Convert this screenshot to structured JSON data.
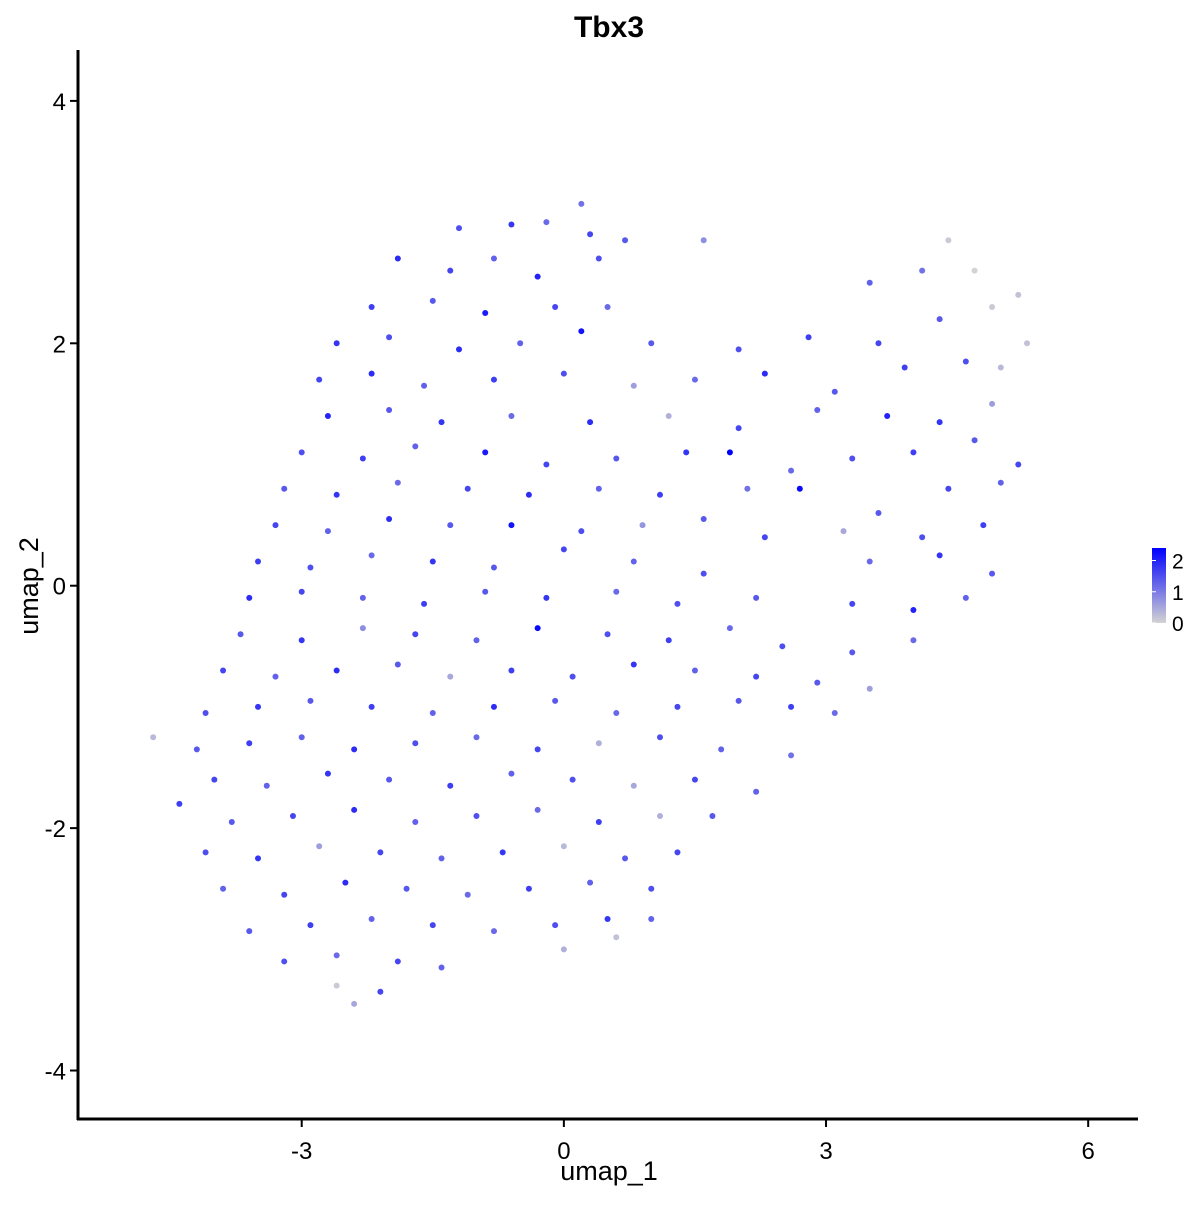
{
  "chart_data": {
    "type": "scatter",
    "title": "Tbx3",
    "x_label": "umap_1",
    "y_label": "umap_2",
    "xlim": [
      -5.56,
      6.57
    ],
    "ylim": [
      -4.4,
      4.42
    ],
    "xticks": [
      -3,
      0,
      3,
      6
    ],
    "yticks": [
      -4,
      -2,
      0,
      2,
      4
    ],
    "colorbar": {
      "lim": [
        0,
        2.4
      ],
      "ticks": [
        0,
        1,
        2
      ],
      "low": "#d3d3d3",
      "high": "#0000ff"
    },
    "x": [
      -1.2,
      -0.6,
      -0.2,
      0.3,
      0.7,
      0.2,
      -1.9,
      -1.3,
      -0.8,
      -0.3,
      0.4,
      1.6,
      4.4,
      -2.2,
      -1.5,
      -0.9,
      -0.1,
      0.5,
      3.5,
      4.1,
      4.7,
      5.2,
      -2.6,
      -2.0,
      -1.2,
      -0.5,
      0.2,
      1.0,
      2.0,
      2.8,
      3.6,
      4.3,
      4.9,
      5.3,
      -2.8,
      -2.2,
      -1.6,
      -0.8,
      0.0,
      0.8,
      1.5,
      2.3,
      3.1,
      3.9,
      4.6,
      5.0,
      -2.7,
      -2.0,
      -1.4,
      -0.6,
      0.3,
      1.2,
      2.0,
      2.9,
      3.7,
      4.3,
      4.9,
      -3.0,
      -2.3,
      -1.7,
      -0.9,
      -0.2,
      0.6,
      1.4,
      1.9,
      2.6,
      3.3,
      4.0,
      4.7,
      5.2,
      -3.2,
      -2.6,
      -1.9,
      -1.1,
      -0.4,
      0.4,
      1.1,
      2.1,
      2.7,
      3.6,
      4.4,
      5.0,
      -3.3,
      -2.7,
      -2.0,
      -1.3,
      -0.6,
      0.2,
      0.9,
      1.6,
      2.3,
      3.2,
      4.1,
      4.8,
      -3.5,
      -2.9,
      -2.2,
      -1.5,
      -0.8,
      0.0,
      0.8,
      1.6,
      3.5,
      4.3,
      4.9,
      -3.6,
      -3.0,
      -2.3,
      -1.6,
      -0.9,
      -0.2,
      0.6,
      1.3,
      2.2,
      3.3,
      4.0,
      4.6,
      -3.7,
      -3.0,
      -2.3,
      -1.7,
      -1.0,
      -0.3,
      0.5,
      1.2,
      1.9,
      2.5,
      3.3,
      4.0,
      -3.9,
      -3.3,
      -2.6,
      -1.9,
      -1.3,
      -0.6,
      0.1,
      0.8,
      1.5,
      2.2,
      2.9,
      3.5,
      -4.1,
      -3.5,
      -2.9,
      -2.2,
      -1.5,
      -0.8,
      -0.1,
      0.6,
      1.3,
      2.0,
      2.6,
      3.1,
      -4.7,
      -4.2,
      -3.6,
      -3.0,
      -2.4,
      -1.7,
      -1.0,
      -0.3,
      0.4,
      1.1,
      1.8,
      2.6,
      -4.0,
      -3.4,
      -2.7,
      -2.0,
      -1.3,
      -0.6,
      0.1,
      0.8,
      1.5,
      2.2,
      -4.4,
      -3.8,
      -3.1,
      -2.4,
      -1.7,
      -1.0,
      -0.3,
      0.4,
      1.1,
      1.7,
      -4.1,
      -3.5,
      -2.8,
      -2.1,
      -1.4,
      -0.7,
      0.0,
      0.7,
      1.3,
      -3.9,
      -3.2,
      -2.5,
      -1.8,
      -1.1,
      -0.4,
      0.3,
      1.0,
      -3.6,
      -2.9,
      -2.2,
      -1.5,
      -0.8,
      -0.1,
      0.5,
      1.0,
      -3.2,
      -2.6,
      -1.9,
      -1.4,
      0.0,
      0.6,
      -2.4,
      -2.1,
      -2.6
    ],
    "y": [
      2.95,
      2.98,
      3.0,
      2.9,
      2.85,
      3.15,
      2.7,
      2.6,
      2.7,
      2.55,
      2.7,
      2.85,
      2.85,
      2.3,
      2.35,
      2.25,
      2.3,
      2.3,
      2.5,
      2.6,
      2.6,
      2.4,
      2.0,
      2.05,
      1.95,
      2.0,
      2.1,
      2.0,
      1.95,
      2.05,
      2.0,
      2.2,
      2.3,
      2.0,
      1.7,
      1.75,
      1.65,
      1.7,
      1.75,
      1.65,
      1.7,
      1.75,
      1.6,
      1.8,
      1.85,
      1.8,
      1.4,
      1.45,
      1.35,
      1.4,
      1.35,
      1.4,
      1.3,
      1.45,
      1.4,
      1.35,
      1.5,
      1.1,
      1.05,
      1.15,
      1.1,
      1.0,
      1.05,
      1.1,
      1.1,
      0.95,
      1.05,
      1.1,
      1.2,
      1.0,
      0.8,
      0.75,
      0.85,
      0.8,
      0.75,
      0.8,
      0.75,
      0.8,
      0.8,
      0.6,
      0.8,
      0.85,
      0.5,
      0.45,
      0.55,
      0.5,
      0.5,
      0.45,
      0.5,
      0.55,
      0.4,
      0.45,
      0.4,
      0.5,
      0.2,
      0.15,
      0.25,
      0.2,
      0.15,
      0.3,
      0.2,
      0.1,
      0.2,
      0.25,
      0.1,
      -0.1,
      -0.05,
      -0.1,
      -0.15,
      -0.05,
      -0.1,
      -0.05,
      -0.15,
      -0.1,
      -0.15,
      -0.2,
      -0.1,
      -0.4,
      -0.45,
      -0.35,
      -0.4,
      -0.45,
      -0.35,
      -0.4,
      -0.45,
      -0.35,
      -0.5,
      -0.55,
      -0.45,
      -0.7,
      -0.75,
      -0.7,
      -0.65,
      -0.75,
      -0.7,
      -0.75,
      -0.65,
      -0.7,
      -0.75,
      -0.8,
      -0.85,
      -1.05,
      -1.0,
      -0.95,
      -1.0,
      -1.05,
      -1.0,
      -0.95,
      -1.05,
      -1.0,
      -0.95,
      -1.0,
      -1.05,
      -1.25,
      -1.35,
      -1.3,
      -1.25,
      -1.35,
      -1.3,
      -1.25,
      -1.35,
      -1.3,
      -1.25,
      -1.35,
      -1.4,
      -1.6,
      -1.65,
      -1.55,
      -1.6,
      -1.65,
      -1.55,
      -1.6,
      -1.65,
      -1.6,
      -1.7,
      -1.8,
      -1.95,
      -1.9,
      -1.85,
      -1.95,
      -1.9,
      -1.85,
      -1.95,
      -1.9,
      -1.9,
      -2.2,
      -2.25,
      -2.15,
      -2.2,
      -2.25,
      -2.2,
      -2.15,
      -2.25,
      -2.2,
      -2.5,
      -2.55,
      -2.45,
      -2.5,
      -2.55,
      -2.5,
      -2.45,
      -2.5,
      -2.85,
      -2.8,
      -2.75,
      -2.8,
      -2.85,
      -2.8,
      -2.75,
      -2.75,
      -3.1,
      -3.05,
      -3.1,
      -3.15,
      -3.0,
      -2.9,
      -3.45,
      -3.35,
      -3.3
    ],
    "values": [
      1.5,
      1.8,
      1.2,
      1.6,
      1.4,
      1.1,
      1.9,
      1.6,
      1.3,
      2.0,
      1.5,
      0.8,
      0.1,
      1.7,
      1.4,
      2.1,
      1.6,
      1.2,
      1.3,
      1.1,
      0,
      0.2,
      1.8,
      1.5,
      1.9,
      1.3,
      2.2,
      1.4,
      1.5,
      1.7,
      1.6,
      1.4,
      0.1,
      0.2,
      1.6,
      1.9,
      1.3,
      1.7,
      1.5,
      0.6,
      1.2,
      1.9,
      1.4,
      1.7,
      1.5,
      0.3,
      2.0,
      1.4,
      1.8,
      1.2,
      1.9,
      0.4,
      1.6,
      1.3,
      2.0,
      1.8,
      0.6,
      1.5,
      1.7,
      1.3,
      2.1,
      1.6,
      1.4,
      1.8,
      2.4,
      1.2,
      1.5,
      1.7,
      1.4,
      1.6,
      1.4,
      1.8,
      1.2,
      1.6,
      1.9,
      1.3,
      1.7,
      1.1,
      2.3,
      1.4,
      1.6,
      1.3,
      1.6,
      1.3,
      1.9,
      1.4,
      2.2,
      1.5,
      0.7,
      1.4,
      1.6,
      0.5,
      1.5,
      1.7,
      1.7,
      1.5,
      1.2,
      1.8,
      1.4,
      1.6,
      1.3,
      1.5,
      1.2,
      1.8,
      1.4,
      1.9,
      1.6,
      1.3,
      1.7,
      1.4,
      1.8,
      1.2,
      1.5,
      1.4,
      1.6,
      2.0,
      1.3,
      1.4,
      1.8,
      0.8,
      1.6,
      1.3,
      2.3,
      1.5,
      1.7,
      1.2,
      1.5,
      1.4,
      1.2,
      1.6,
      1.3,
      1.9,
      1.4,
      0.5,
      1.7,
      1.5,
      1.8,
      1.3,
      1.6,
      1.4,
      0.6,
      1.5,
      1.8,
      1.4,
      1.7,
      1.3,
      1.9,
      1.4,
      1.2,
      1.6,
      1.4,
      1.7,
      1.2,
      0.3,
      1.4,
      1.7,
      1.3,
      1.9,
      1.5,
      1.2,
      1.6,
      0.4,
      1.5,
      1.3,
      1.1,
      1.6,
      1.3,
      1.8,
      1.4,
      1.7,
      1.3,
      1.5,
      0.5,
      1.6,
      1.3,
      1.7,
      1.4,
      1.6,
      1.9,
      1.3,
      1.5,
      1.2,
      1.7,
      0.4,
      1.4,
      1.5,
      1.8,
      0.6,
      1.6,
      1.3,
      1.8,
      0.3,
      1.4,
      1.6,
      1.3,
      1.6,
      1.9,
      1.4,
      1.2,
      1.7,
      1.3,
      1.5,
      1.4,
      1.7,
      1.3,
      1.6,
      1.2,
      1.5,
      1.8,
      1.3,
      1.5,
      1.2,
      1.6,
      1.3,
      0.4,
      0.2,
      0.5,
      1.6,
      0.1
    ]
  }
}
